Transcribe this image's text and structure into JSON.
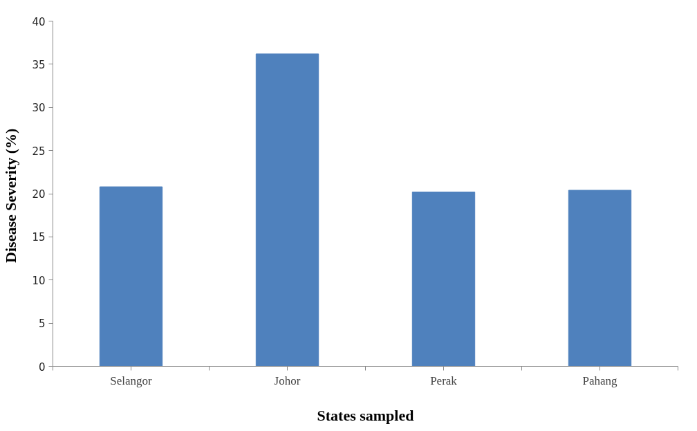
{
  "chart_data": {
    "type": "bar",
    "xlabel": "States sampled",
    "ylabel": "Disease Severity  (%)",
    "categories": [
      "Selangor",
      "Johor",
      "Perak",
      "Pahang"
    ],
    "values": [
      20.8,
      36.2,
      20.2,
      20.4
    ],
    "color": "#4f81bd",
    "ylim": [
      0,
      40
    ],
    "yticks": [
      0,
      5,
      10,
      15,
      20,
      25,
      30,
      35,
      40
    ],
    "grid": false
  }
}
